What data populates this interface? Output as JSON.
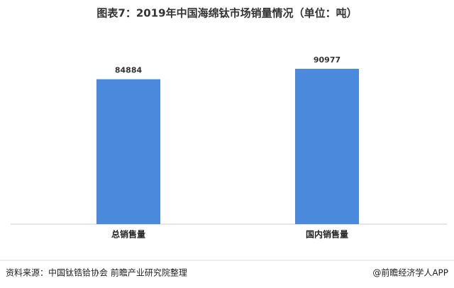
{
  "chart_data": {
    "type": "bar",
    "title": "图表7：2019年中国海绵钛市场销量情况（单位：吨）",
    "categories": [
      "总销售量",
      "国内销售量"
    ],
    "values": [
      84884,
      90977
    ],
    "color": "#4a89dc",
    "source": "资料来源：中国钛锆铪协会  前瞻产业研究院整理",
    "credit": "@前瞻经济学人APP"
  }
}
